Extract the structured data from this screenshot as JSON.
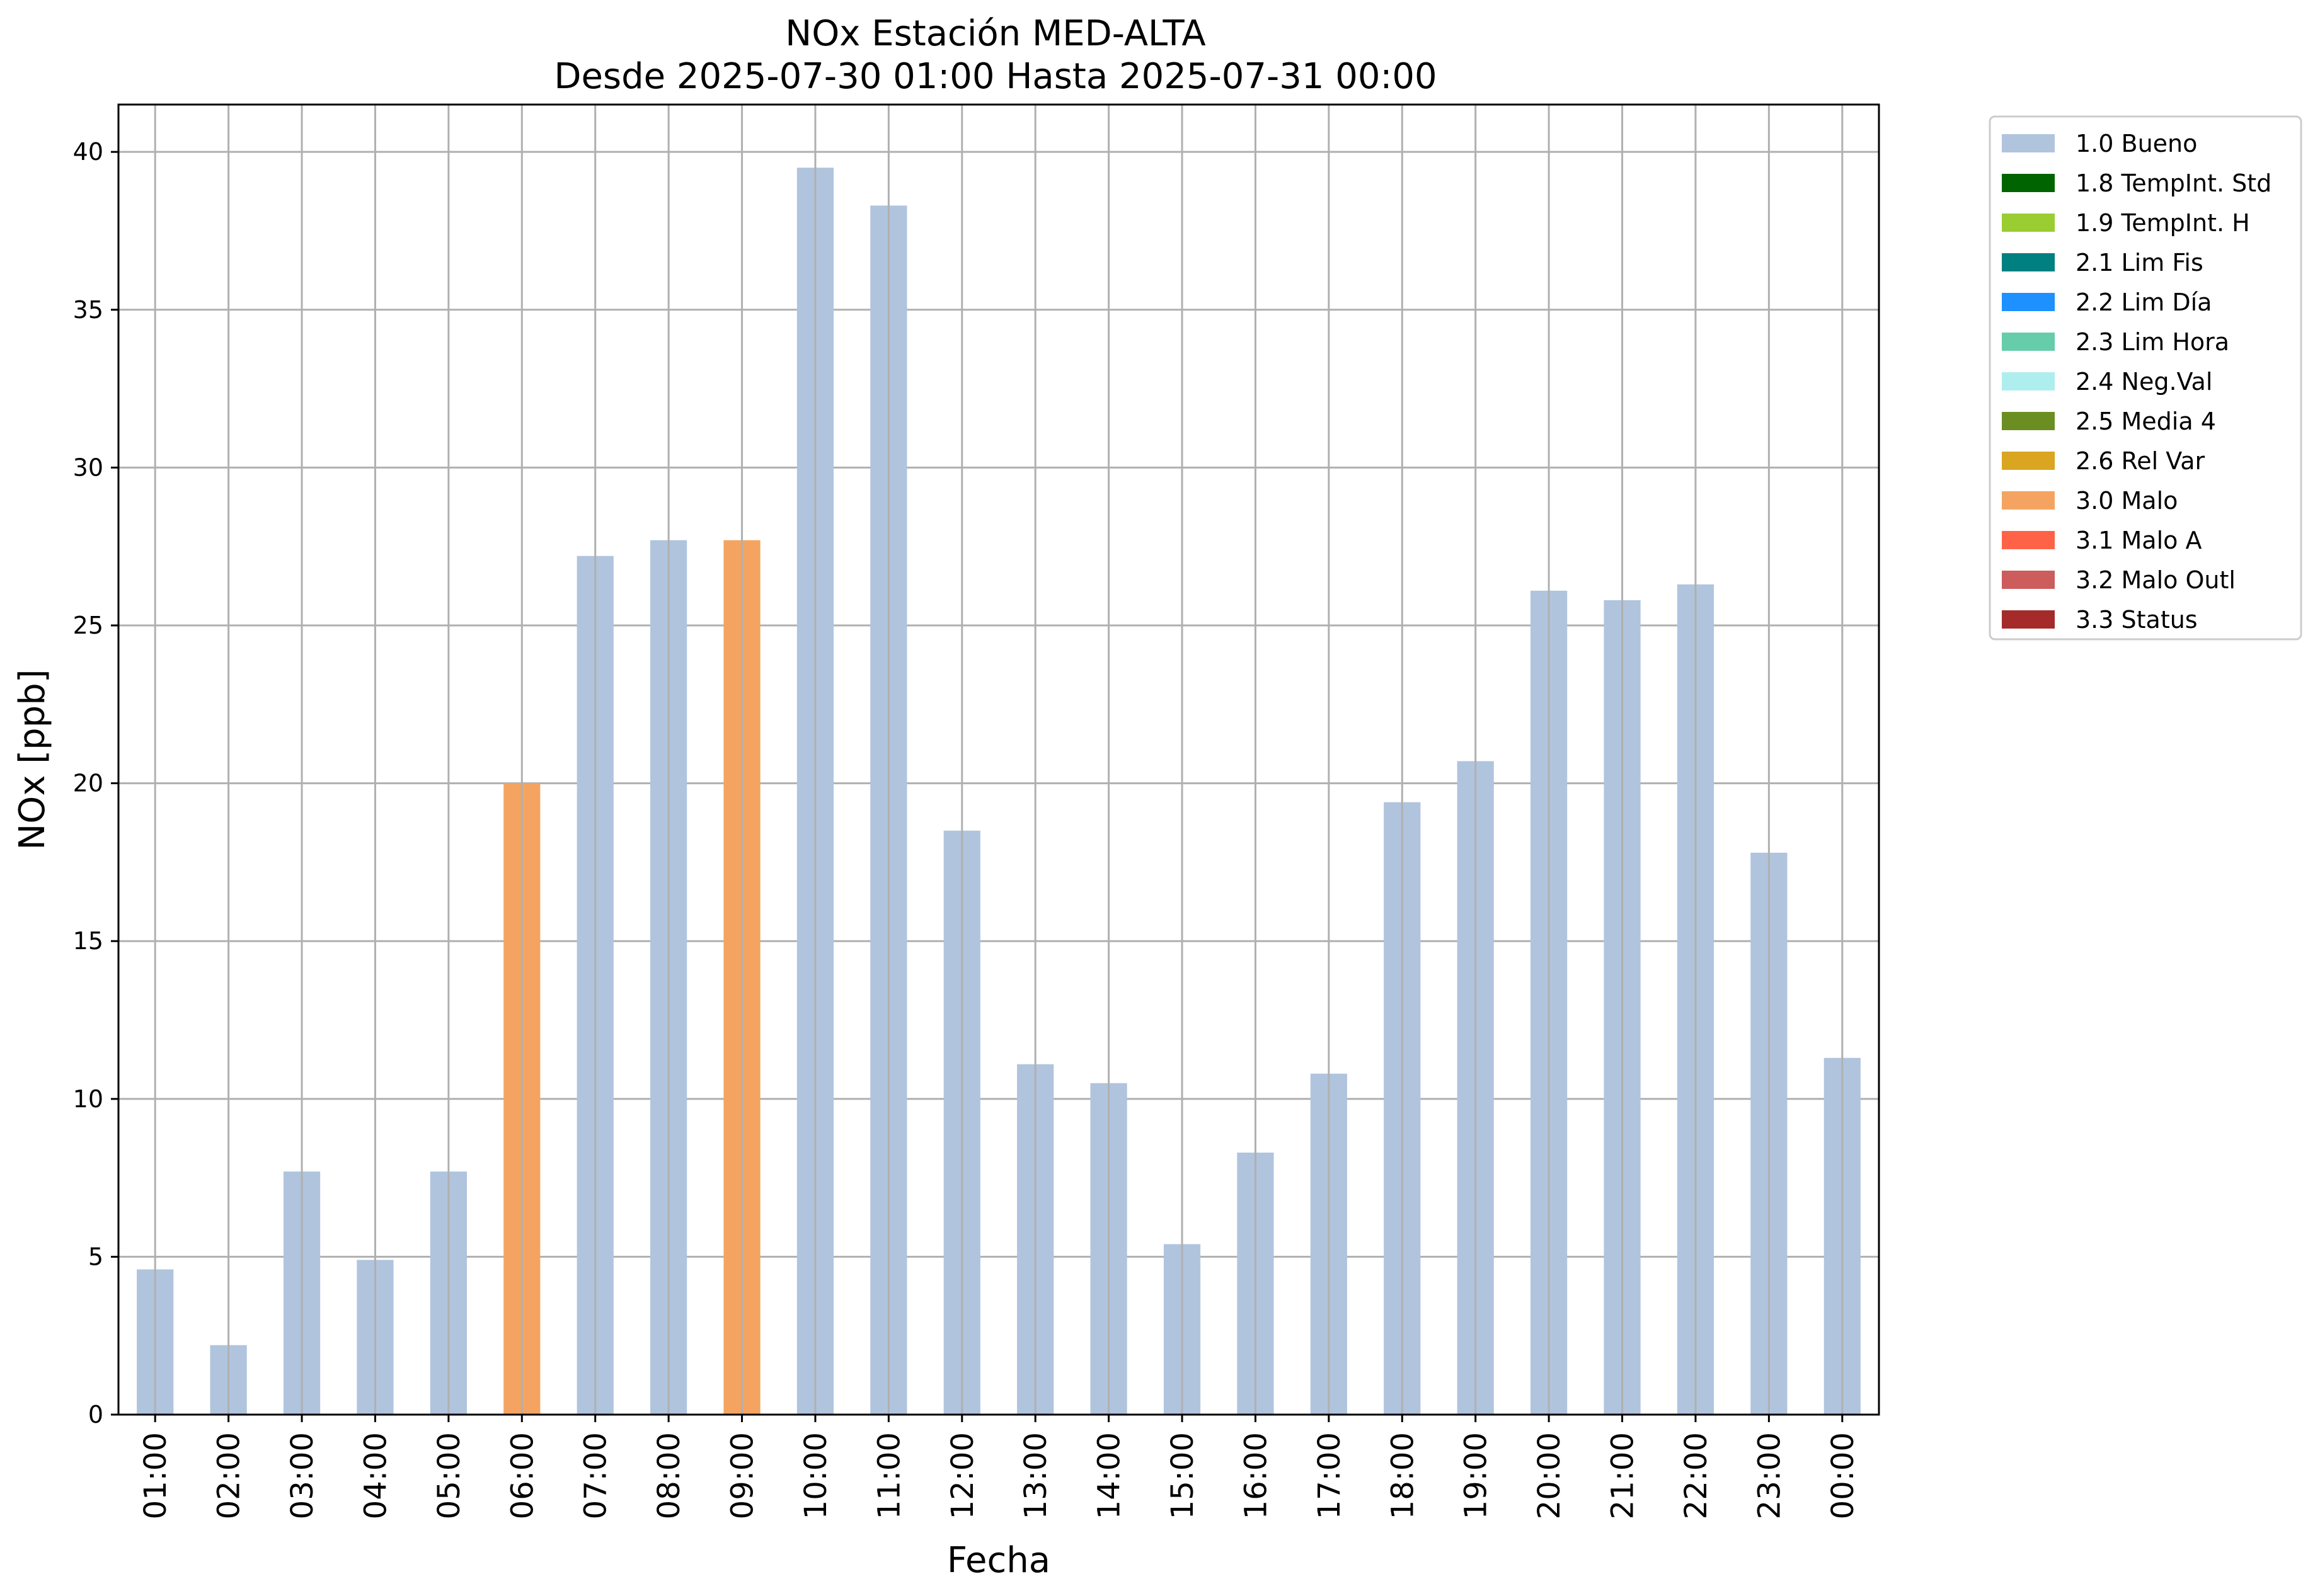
{
  "chart_data": {
    "type": "bar",
    "title": "NOx Estación MED-ALTA",
    "subtitle": "Desde 2025-07-30 01:00 Hasta 2025-07-31 00:00",
    "xlabel": "Fecha",
    "ylabel": "NOx [ppb]",
    "ylim": [
      0,
      41.5
    ],
    "yticks": [
      0,
      5,
      10,
      15,
      20,
      25,
      30,
      35,
      40
    ],
    "grid": true,
    "legend_position": "outside-right",
    "categories": [
      "01:00",
      "02:00",
      "03:00",
      "04:00",
      "05:00",
      "06:00",
      "07:00",
      "08:00",
      "09:00",
      "10:00",
      "11:00",
      "12:00",
      "13:00",
      "14:00",
      "15:00",
      "16:00",
      "17:00",
      "18:00",
      "19:00",
      "20:00",
      "21:00",
      "22:00",
      "23:00",
      "00:00"
    ],
    "values": [
      4.6,
      2.2,
      7.7,
      4.9,
      7.7,
      20.0,
      27.2,
      27.7,
      27.7,
      39.5,
      38.3,
      18.5,
      11.1,
      10.5,
      5.4,
      8.3,
      10.8,
      19.4,
      20.7,
      26.1,
      25.8,
      26.3,
      17.8,
      11.3
    ],
    "flags": [
      "1.0 Bueno",
      "1.0 Bueno",
      "1.0 Bueno",
      "1.0 Bueno",
      "1.0 Bueno",
      "3.0 Malo",
      "1.0 Bueno",
      "1.0 Bueno",
      "3.0 Malo",
      "1.0 Bueno",
      "1.0 Bueno",
      "1.0 Bueno",
      "1.0 Bueno",
      "1.0 Bueno",
      "1.0 Bueno",
      "1.0 Bueno",
      "1.0 Bueno",
      "1.0 Bueno",
      "1.0 Bueno",
      "1.0 Bueno",
      "1.0 Bueno",
      "1.0 Bueno",
      "1.0 Bueno",
      "1.0 Bueno"
    ],
    "legend": [
      {
        "label": "1.0 Bueno",
        "color": "#b0c4de"
      },
      {
        "label": "1.8 TempInt. Std",
        "color": "#006400"
      },
      {
        "label": "1.9 TempInt. H",
        "color": "#9acd32"
      },
      {
        "label": "2.1 Lim Fis",
        "color": "#008080"
      },
      {
        "label": "2.2 Lim Día",
        "color": "#1e90ff"
      },
      {
        "label": "2.3 Lim Hora",
        "color": "#66cdaa"
      },
      {
        "label": "2.4 Neg.Val",
        "color": "#afeeee"
      },
      {
        "label": "2.5 Media 4",
        "color": "#6b8e23"
      },
      {
        "label": "2.6 Rel Var",
        "color": "#daa520"
      },
      {
        "label": "3.0 Malo",
        "color": "#f4a460"
      },
      {
        "label": "3.1 Malo A",
        "color": "#ff6347"
      },
      {
        "label": "3.2 Malo Outl",
        "color": "#cd5c5c"
      },
      {
        "label": "3.3 Status",
        "color": "#a52a2a"
      }
    ]
  }
}
